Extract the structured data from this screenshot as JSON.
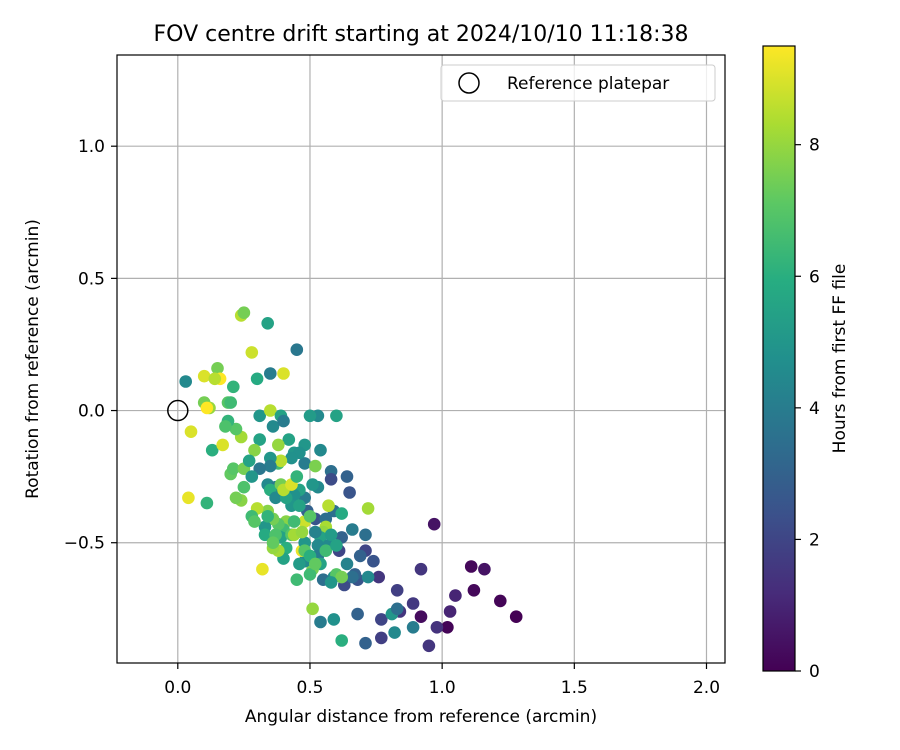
{
  "chart_data": {
    "type": "scatter",
    "title": "FOV centre drift starting at 2024/10/10 11:18:38",
    "xlabel": "Angular distance from reference (arcmin)",
    "ylabel": "Rotation from reference (arcmin)",
    "xlim": [
      -0.23,
      2.07
    ],
    "ylim": [
      -0.955,
      1.345
    ],
    "x_ticks": [
      0.0,
      0.5,
      1.0,
      1.5,
      2.0
    ],
    "x_tick_labels": [
      "0.0",
      "0.5",
      "1.0",
      "1.5",
      "2.0"
    ],
    "y_ticks": [
      -0.5,
      0.0,
      0.5,
      1.0
    ],
    "y_tick_labels": [
      "−0.5",
      "0.0",
      "0.5",
      "1.0"
    ],
    "grid": true,
    "legend": {
      "position": "top-right",
      "entries": [
        {
          "label": "Reference platepar",
          "marker": "open-circle"
        }
      ]
    },
    "reference_point": {
      "x": 0.0,
      "y": 0.0
    },
    "colorbar": {
      "label": "Hours from first FF file",
      "colormap": "viridis",
      "range": [
        0,
        9.5
      ],
      "ticks": [
        0,
        2,
        4,
        6,
        8
      ],
      "tick_labels": [
        "0",
        "2",
        "4",
        "6",
        "8"
      ]
    },
    "points": [
      {
        "x": 1.28,
        "y": -0.78,
        "c": 0.0
      },
      {
        "x": 1.22,
        "y": -0.72,
        "c": 0.1
      },
      {
        "x": 1.12,
        "y": -0.68,
        "c": 0.2
      },
      {
        "x": 1.11,
        "y": -0.59,
        "c": 0.2
      },
      {
        "x": 1.16,
        "y": -0.6,
        "c": 0.5
      },
      {
        "x": 1.02,
        "y": -0.82,
        "c": 0.1
      },
      {
        "x": 0.92,
        "y": -0.78,
        "c": 0.3
      },
      {
        "x": 0.97,
        "y": -0.43,
        "c": 0.5
      },
      {
        "x": 1.05,
        "y": -0.7,
        "c": 1.0
      },
      {
        "x": 1.03,
        "y": -0.76,
        "c": 1.0
      },
      {
        "x": 0.98,
        "y": -0.82,
        "c": 1.4
      },
      {
        "x": 0.92,
        "y": -0.6,
        "c": 1.5
      },
      {
        "x": 0.95,
        "y": -0.89,
        "c": 1.5
      },
      {
        "x": 0.89,
        "y": -0.73,
        "c": 1.6
      },
      {
        "x": 0.83,
        "y": -0.68,
        "c": 1.8
      },
      {
        "x": 0.84,
        "y": -0.76,
        "c": 1.5
      },
      {
        "x": 0.77,
        "y": -0.86,
        "c": 1.8
      },
      {
        "x": 0.77,
        "y": -0.79,
        "c": 2.0
      },
      {
        "x": 0.76,
        "y": -0.63,
        "c": 1.5
      },
      {
        "x": 0.74,
        "y": -0.57,
        "c": 2.5
      },
      {
        "x": 0.71,
        "y": -0.88,
        "c": 3.0
      },
      {
        "x": 0.68,
        "y": -0.77,
        "c": 3.0
      },
      {
        "x": 0.68,
        "y": -0.64,
        "c": 2.5
      },
      {
        "x": 0.67,
        "y": -0.62,
        "c": 3.0
      },
      {
        "x": 0.71,
        "y": -0.53,
        "c": 2.0
      },
      {
        "x": 0.71,
        "y": -0.47,
        "c": 3.5
      },
      {
        "x": 0.66,
        "y": -0.45,
        "c": 4.0
      },
      {
        "x": 0.63,
        "y": -0.66,
        "c": 2.2
      },
      {
        "x": 0.61,
        "y": -0.53,
        "c": 2.0
      },
      {
        "x": 0.62,
        "y": -0.48,
        "c": 3.0
      },
      {
        "x": 0.59,
        "y": -0.38,
        "c": 3.5
      },
      {
        "x": 0.65,
        "y": -0.31,
        "c": 2.5
      },
      {
        "x": 0.64,
        "y": -0.25,
        "c": 3.0
      },
      {
        "x": 0.58,
        "y": -0.23,
        "c": 3.5
      },
      {
        "x": 0.58,
        "y": -0.26,
        "c": 2.2
      },
      {
        "x": 0.6,
        "y": -0.02,
        "c": 5.5
      },
      {
        "x": 0.54,
        "y": -0.15,
        "c": 4.5
      },
      {
        "x": 0.53,
        "y": -0.02,
        "c": 4.5
      },
      {
        "x": 0.5,
        "y": -0.02,
        "c": 5.2
      },
      {
        "x": 0.48,
        "y": -0.13,
        "c": 5.0
      },
      {
        "x": 0.45,
        "y": 0.23,
        "c": 3.8
      },
      {
        "x": 0.48,
        "y": -0.2,
        "c": 4.0
      },
      {
        "x": 0.52,
        "y": -0.21,
        "c": 7.6
      },
      {
        "x": 0.53,
        "y": -0.29,
        "c": 4.5
      },
      {
        "x": 0.51,
        "y": -0.28,
        "c": 5.0
      },
      {
        "x": 0.52,
        "y": -0.41,
        "c": 2.5
      },
      {
        "x": 0.56,
        "y": -0.41,
        "c": 3.5
      },
      {
        "x": 0.57,
        "y": -0.36,
        "c": 8.5
      },
      {
        "x": 0.56,
        "y": -0.44,
        "c": 8.3
      },
      {
        "x": 0.55,
        "y": -0.46,
        "c": 8.0
      },
      {
        "x": 0.54,
        "y": -0.48,
        "c": 5.5
      },
      {
        "x": 0.53,
        "y": -0.51,
        "c": 4.5
      },
      {
        "x": 0.53,
        "y": -0.55,
        "c": 4.0
      },
      {
        "x": 0.54,
        "y": -0.58,
        "c": 5.5
      },
      {
        "x": 0.57,
        "y": -0.51,
        "c": 4.5
      },
      {
        "x": 0.59,
        "y": -0.63,
        "c": 4.8
      },
      {
        "x": 0.55,
        "y": -0.64,
        "c": 3.5
      },
      {
        "x": 0.54,
        "y": -0.8,
        "c": 4.0
      },
      {
        "x": 0.59,
        "y": -0.79,
        "c": 4.8
      },
      {
        "x": 0.6,
        "y": -0.62,
        "c": 7.0
      },
      {
        "x": 0.62,
        "y": -0.87,
        "c": 6.0
      },
      {
        "x": 0.51,
        "y": -0.75,
        "c": 8.0
      },
      {
        "x": 0.51,
        "y": -0.6,
        "c": 7.5
      },
      {
        "x": 0.5,
        "y": -0.62,
        "c": 6.5
      },
      {
        "x": 0.48,
        "y": -0.57,
        "c": 4.5
      },
      {
        "x": 0.47,
        "y": -0.53,
        "c": 9.2
      },
      {
        "x": 0.46,
        "y": -0.58,
        "c": 5.2
      },
      {
        "x": 0.45,
        "y": -0.64,
        "c": 6.5
      },
      {
        "x": 0.48,
        "y": -0.5,
        "c": 5.0
      },
      {
        "x": 0.48,
        "y": -0.42,
        "c": 8.8
      },
      {
        "x": 0.49,
        "y": -0.38,
        "c": 3.0
      },
      {
        "x": 0.48,
        "y": -0.33,
        "c": 4.0
      },
      {
        "x": 0.46,
        "y": -0.3,
        "c": 5.5
      },
      {
        "x": 0.44,
        "y": -0.32,
        "c": 4.8
      },
      {
        "x": 0.43,
        "y": -0.36,
        "c": 5.0
      },
      {
        "x": 0.41,
        "y": -0.42,
        "c": 7.8
      },
      {
        "x": 0.4,
        "y": -0.45,
        "c": 6.5
      },
      {
        "x": 0.39,
        "y": -0.48,
        "c": 5.5
      },
      {
        "x": 0.43,
        "y": -0.47,
        "c": 7.0
      },
      {
        "x": 0.41,
        "y": -0.52,
        "c": 6.0
      },
      {
        "x": 0.4,
        "y": -0.56,
        "c": 5.5
      },
      {
        "x": 0.38,
        "y": -0.53,
        "c": 8.2
      },
      {
        "x": 0.36,
        "y": -0.52,
        "c": 8.0
      },
      {
        "x": 0.38,
        "y": -0.43,
        "c": 7.0
      },
      {
        "x": 0.36,
        "y": -0.41,
        "c": 7.5
      },
      {
        "x": 0.34,
        "y": -0.38,
        "c": 7.8
      },
      {
        "x": 0.33,
        "y": -0.44,
        "c": 5.0
      },
      {
        "x": 0.33,
        "y": -0.47,
        "c": 5.8
      },
      {
        "x": 0.3,
        "y": -0.37,
        "c": 8.5
      },
      {
        "x": 0.28,
        "y": -0.4,
        "c": 6.5
      },
      {
        "x": 0.32,
        "y": -0.6,
        "c": 9.2
      },
      {
        "x": 0.24,
        "y": -0.34,
        "c": 7.8
      },
      {
        "x": 0.22,
        "y": -0.33,
        "c": 7.5
      },
      {
        "x": 0.25,
        "y": -0.29,
        "c": 6.8
      },
      {
        "x": 0.2,
        "y": -0.24,
        "c": 7.2
      },
      {
        "x": 0.21,
        "y": -0.22,
        "c": 7.0
      },
      {
        "x": 0.25,
        "y": -0.22,
        "c": 7.5
      },
      {
        "x": 0.24,
        "y": -0.1,
        "c": 8.2
      },
      {
        "x": 0.22,
        "y": -0.07,
        "c": 7.0
      },
      {
        "x": 0.19,
        "y": -0.04,
        "c": 6.2
      },
      {
        "x": 0.18,
        "y": -0.06,
        "c": 6.8
      },
      {
        "x": 0.13,
        "y": -0.15,
        "c": 6.0
      },
      {
        "x": 0.17,
        "y": -0.13,
        "c": 9.0
      },
      {
        "x": 0.11,
        "y": -0.35,
        "c": 6.2
      },
      {
        "x": 0.04,
        "y": -0.33,
        "c": 9.2
      },
      {
        "x": 0.05,
        "y": -0.08,
        "c": 9.0
      },
      {
        "x": 0.03,
        "y": 0.11,
        "c": 4.5
      },
      {
        "x": 0.1,
        "y": 0.13,
        "c": 9.0
      },
      {
        "x": 0.15,
        "y": 0.16,
        "c": 7.5
      },
      {
        "x": 0.16,
        "y": 0.12,
        "c": 9.5
      },
      {
        "x": 0.14,
        "y": 0.12,
        "c": 8.5
      },
      {
        "x": 0.1,
        "y": 0.03,
        "c": 7.5
      },
      {
        "x": 0.12,
        "y": 0.01,
        "c": 8.0
      },
      {
        "x": 0.11,
        "y": 0.01,
        "c": 9.5
      },
      {
        "x": 0.19,
        "y": 0.03,
        "c": 7.0
      },
      {
        "x": 0.2,
        "y": 0.03,
        "c": 6.5
      },
      {
        "x": 0.21,
        "y": 0.09,
        "c": 6.2
      },
      {
        "x": 0.24,
        "y": 0.36,
        "c": 8.5
      },
      {
        "x": 0.25,
        "y": 0.37,
        "c": 7.5
      },
      {
        "x": 0.28,
        "y": 0.22,
        "c": 8.8
      },
      {
        "x": 0.3,
        "y": 0.12,
        "c": 5.8
      },
      {
        "x": 0.34,
        "y": 0.33,
        "c": 5.5
      },
      {
        "x": 0.35,
        "y": 0.14,
        "c": 4.0
      },
      {
        "x": 0.4,
        "y": 0.14,
        "c": 9.0
      },
      {
        "x": 0.31,
        "y": -0.02,
        "c": 5.0
      },
      {
        "x": 0.35,
        "y": 0.0,
        "c": 8.5
      },
      {
        "x": 0.36,
        "y": -0.06,
        "c": 4.5
      },
      {
        "x": 0.39,
        "y": -0.02,
        "c": 5.5
      },
      {
        "x": 0.4,
        "y": -0.04,
        "c": 4.0
      },
      {
        "x": 0.42,
        "y": -0.11,
        "c": 5.5
      },
      {
        "x": 0.44,
        "y": -0.16,
        "c": 5.0
      },
      {
        "x": 0.46,
        "y": -0.16,
        "c": 4.8
      },
      {
        "x": 0.43,
        "y": -0.18,
        "c": 4.8
      },
      {
        "x": 0.38,
        "y": -0.13,
        "c": 8.0
      },
      {
        "x": 0.38,
        "y": -0.2,
        "c": 6.5
      },
      {
        "x": 0.39,
        "y": -0.19,
        "c": 8.5
      },
      {
        "x": 0.35,
        "y": -0.18,
        "c": 5.0
      },
      {
        "x": 0.35,
        "y": -0.21,
        "c": 4.0
      },
      {
        "x": 0.31,
        "y": -0.22,
        "c": 3.8
      },
      {
        "x": 0.31,
        "y": -0.11,
        "c": 5.5
      },
      {
        "x": 0.29,
        "y": -0.15,
        "c": 7.8
      },
      {
        "x": 0.27,
        "y": -0.19,
        "c": 5.5
      },
      {
        "x": 0.28,
        "y": -0.25,
        "c": 5.0
      },
      {
        "x": 0.34,
        "y": -0.28,
        "c": 4.5
      },
      {
        "x": 0.37,
        "y": -0.29,
        "c": 4.0
      },
      {
        "x": 0.35,
        "y": -0.3,
        "c": 6.0
      },
      {
        "x": 0.37,
        "y": -0.33,
        "c": 4.5
      },
      {
        "x": 0.39,
        "y": -0.28,
        "c": 7.5
      },
      {
        "x": 0.41,
        "y": -0.33,
        "c": 5.5
      },
      {
        "x": 0.4,
        "y": -0.3,
        "c": 8.5
      },
      {
        "x": 0.43,
        "y": -0.28,
        "c": 9.0
      },
      {
        "x": 0.45,
        "y": -0.25,
        "c": 6.2
      },
      {
        "x": 0.44,
        "y": -0.42,
        "c": 6.5
      },
      {
        "x": 0.44,
        "y": -0.47,
        "c": 8.2
      },
      {
        "x": 0.48,
        "y": -0.53,
        "c": 7.0
      },
      {
        "x": 0.5,
        "y": -0.55,
        "c": 6.0
      },
      {
        "x": 0.52,
        "y": -0.58,
        "c": 7.2
      },
      {
        "x": 0.56,
        "y": -0.53,
        "c": 6.5
      },
      {
        "x": 0.58,
        "y": -0.47,
        "c": 5.2
      },
      {
        "x": 0.6,
        "y": -0.51,
        "c": 5.5
      },
      {
        "x": 0.62,
        "y": -0.39,
        "c": 5.8
      },
      {
        "x": 0.64,
        "y": -0.58,
        "c": 4.2
      },
      {
        "x": 0.66,
        "y": -0.63,
        "c": 3.5
      },
      {
        "x": 0.69,
        "y": -0.55,
        "c": 3.0
      },
      {
        "x": 0.72,
        "y": -0.63,
        "c": 4.5
      },
      {
        "x": 0.72,
        "y": -0.37,
        "c": 8.2
      },
      {
        "x": 0.81,
        "y": -0.77,
        "c": 5.0
      },
      {
        "x": 0.82,
        "y": -0.84,
        "c": 4.5
      },
      {
        "x": 0.89,
        "y": -0.82,
        "c": 4.0
      },
      {
        "x": 0.83,
        "y": -0.75,
        "c": 3.5
      },
      {
        "x": 0.62,
        "y": -0.63,
        "c": 7.5
      },
      {
        "x": 0.58,
        "y": -0.65,
        "c": 5.0
      },
      {
        "x": 0.47,
        "y": -0.46,
        "c": 8.0
      },
      {
        "x": 0.37,
        "y": -0.47,
        "c": 6.8
      },
      {
        "x": 0.29,
        "y": -0.42,
        "c": 7.0
      },
      {
        "x": 0.36,
        "y": -0.5,
        "c": 7.2
      },
      {
        "x": 0.34,
        "y": -0.4,
        "c": 6.2
      },
      {
        "x": 0.5,
        "y": -0.4,
        "c": 7.0
      },
      {
        "x": 0.52,
        "y": -0.46,
        "c": 4.2
      },
      {
        "x": 0.46,
        "y": -0.36,
        "c": 5.5
      }
    ]
  }
}
